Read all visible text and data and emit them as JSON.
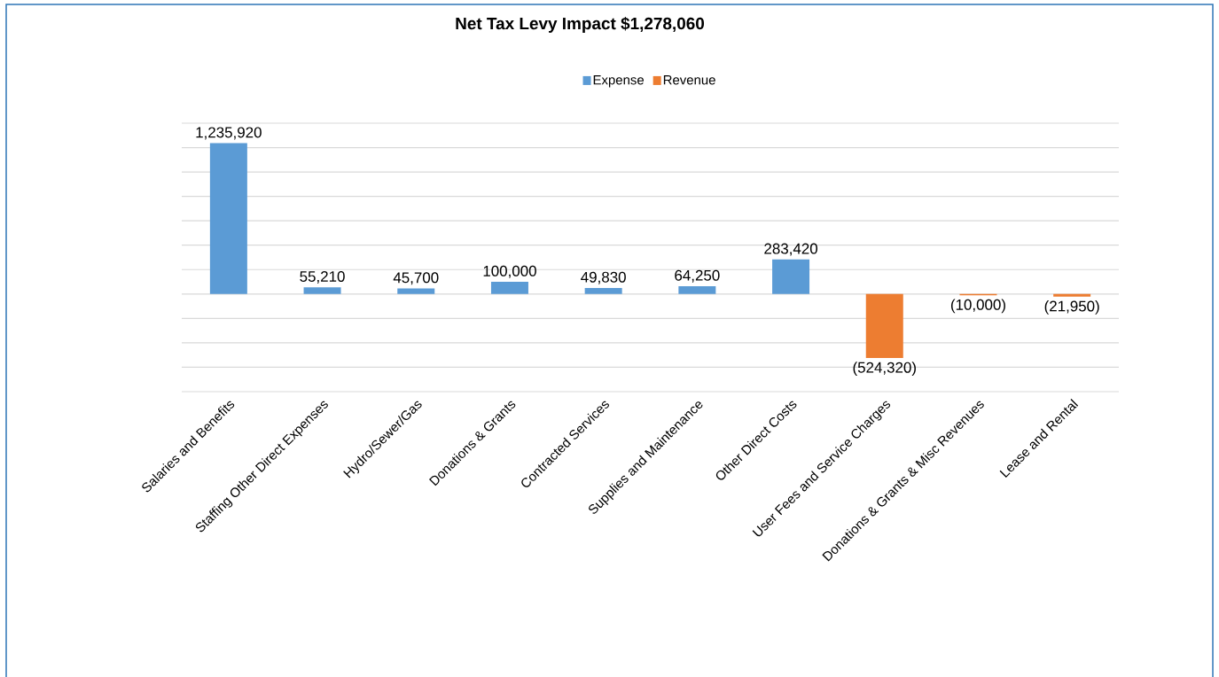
{
  "chart_data": {
    "type": "bar",
    "title": "Net Tax Levy Impact   $1,278,060",
    "categories": [
      "Salaries and Benefits",
      "Staffing Other Direct Expenses",
      "Hydro/Sewer/Gas",
      "Donations & Grants",
      "Contracted Services",
      "Supplies and Maintenance",
      "Other Direct Costs",
      "User Fees and Service Charges",
      "Donations & Grants & Misc Revenues",
      "Lease and Rental"
    ],
    "series": [
      {
        "name": "Expense",
        "color": "#5b9bd5",
        "values": [
          1235920,
          55210,
          45700,
          100000,
          49830,
          64250,
          283420,
          null,
          null,
          null
        ],
        "value_labels": [
          "1,235,920",
          "55,210",
          "45,700",
          "100,000",
          "49,830",
          "64,250",
          "283,420",
          null,
          null,
          null
        ]
      },
      {
        "name": "Revenue",
        "color": "#ed7d31",
        "values": [
          null,
          null,
          null,
          null,
          null,
          null,
          null,
          -524320,
          -10000,
          -21950
        ],
        "value_labels": [
          null,
          null,
          null,
          null,
          null,
          null,
          null,
          "(524,320)",
          "(10,000)",
          "(21,950)"
        ]
      }
    ],
    "ylim": [
      -800000,
      1400000
    ],
    "yticks": [
      {
        "value": -800000,
        "label": null
      },
      {
        "value": -600000,
        "label": null
      },
      {
        "value": -400000,
        "label": null
      },
      {
        "value": -200000,
        "label": null
      },
      {
        "value": 0,
        "label": null
      },
      {
        "value": 200000,
        "label": null
      },
      {
        "value": 400000,
        "label": null
      },
      {
        "value": 600000,
        "label": null
      },
      {
        "value": 800000,
        "label": null
      },
      {
        "value": 1000000,
        "label": null
      },
      {
        "value": 1200000,
        "label": null
      },
      {
        "value": 1400000,
        "label": null
      }
    ],
    "tick_labels": "x",
    "grid": "y",
    "legend": "top"
  }
}
